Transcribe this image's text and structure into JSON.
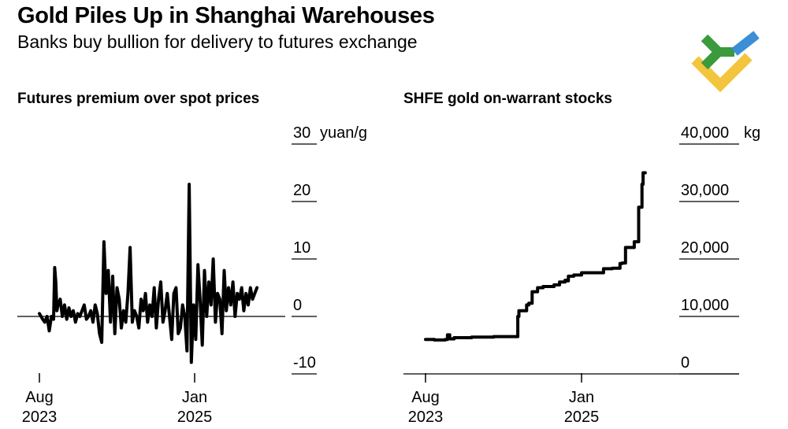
{
  "header": {
    "title": "Gold Piles Up in Shanghai Warehouses",
    "subtitle": "Banks buy bullion for delivery to futures exchange"
  },
  "colors": {
    "line": "#000000",
    "logo_green": "#3a9a3c",
    "logo_blue": "#3b8fd4",
    "logo_yellow": "#f2c53d"
  },
  "chart_data": [
    {
      "type": "line",
      "title": "Futures premium over spot prices",
      "unit": "yuan/g",
      "ylim": [
        -10,
        30
      ],
      "y_ticks": [
        {
          "value": 30,
          "label": "30"
        },
        {
          "value": 20,
          "label": "20"
        },
        {
          "value": 10,
          "label": "10"
        },
        {
          "value": 0,
          "label": "0"
        },
        {
          "value": -10,
          "label": "-10"
        }
      ],
      "x_ticks": [
        {
          "x": 2023.58,
          "label_top": "Aug",
          "label_bottom": "2023"
        },
        {
          "x": 2025.0,
          "label_top": "Jan",
          "label_bottom": "2025"
        }
      ],
      "xlim": [
        2023.0,
        2026.0
      ],
      "series": [
        {
          "name": "Premium",
          "x": [
            2023.58,
            2023.61,
            2023.63,
            2023.65,
            2023.67,
            2023.69,
            2023.71,
            2023.72,
            2023.73,
            2023.74,
            2023.75,
            2023.77,
            2023.79,
            2023.81,
            2023.83,
            2023.85,
            2023.87,
            2023.89,
            2023.91,
            2023.93,
            2023.95,
            2023.97,
            2023.99,
            2024.01,
            2024.03,
            2024.05,
            2024.07,
            2024.09,
            2024.11,
            2024.13,
            2024.15,
            2024.17,
            2024.19,
            2024.21,
            2024.23,
            2024.25,
            2024.27,
            2024.29,
            2024.31,
            2024.33,
            2024.35,
            2024.37,
            2024.39,
            2024.41,
            2024.43,
            2024.45,
            2024.47,
            2024.49,
            2024.51,
            2024.53,
            2024.55,
            2024.57,
            2024.59,
            2024.61,
            2024.63,
            2024.65,
            2024.67,
            2024.69,
            2024.71,
            2024.73,
            2024.75,
            2024.77,
            2024.79,
            2024.81,
            2024.83,
            2024.85,
            2024.87,
            2024.89,
            2024.91,
            2024.93,
            2024.95,
            2024.97,
            2024.99,
            2025.01,
            2025.03,
            2025.05,
            2025.07,
            2025.09,
            2025.11,
            2025.13,
            2025.15,
            2025.17,
            2025.19,
            2025.21,
            2025.23,
            2025.25,
            2025.27,
            2025.29,
            2025.31,
            2025.33,
            2025.35,
            2025.37,
            2025.39,
            2025.41,
            2025.43,
            2025.45,
            2025.47,
            2025.49,
            2025.51,
            2025.53,
            2025.55,
            2025.57
          ],
          "values": [
            0.5,
            -0.5,
            -1,
            0,
            -2.5,
            0,
            -0.5,
            8.5,
            6,
            1,
            2,
            3,
            0,
            2,
            -0.5,
            1.5,
            0,
            1,
            -1,
            0.5,
            0,
            1,
            2,
            -0.5,
            0,
            1,
            -1,
            2,
            0.5,
            -3,
            -4.5,
            13,
            4,
            8,
            -1,
            7,
            -3,
            5,
            3,
            -2,
            1,
            -1,
            4,
            12,
            -1,
            1,
            0,
            -2,
            3,
            1,
            4,
            -1,
            2,
            0,
            5,
            -2,
            3,
            6,
            -1,
            1,
            4,
            0,
            -4,
            4,
            5,
            -3,
            -2,
            2,
            0,
            -6,
            23,
            -8,
            2,
            -4,
            9,
            3,
            -5,
            8,
            0,
            6,
            2,
            10,
            -1,
            4,
            3,
            -3,
            8,
            1,
            5,
            2,
            6,
            0,
            4,
            3,
            5,
            1,
            4,
            2,
            5,
            3,
            4,
            5
          ]
        }
      ]
    },
    {
      "type": "line",
      "title": "SHFE gold on-warrant stocks",
      "unit": "kg",
      "ylim": [
        0,
        40000
      ],
      "y_ticks": [
        {
          "value": 40000,
          "label": "40,000"
        },
        {
          "value": 30000,
          "label": "30,000"
        },
        {
          "value": 20000,
          "label": "20,000"
        },
        {
          "value": 10000,
          "label": "10,000"
        },
        {
          "value": 0,
          "label": "0"
        }
      ],
      "x_ticks": [
        {
          "x": 2023.58,
          "label_top": "Aug",
          "label_bottom": "2023"
        },
        {
          "x": 2025.0,
          "label_top": "Jan",
          "label_bottom": "2025"
        }
      ],
      "xlim": [
        2023.0,
        2026.0
      ],
      "series": [
        {
          "name": "Stocks",
          "x": [
            2023.58,
            2023.66,
            2023.76,
            2023.78,
            2023.8,
            2023.82,
            2023.84,
            2023.9,
            2024.0,
            2024.2,
            2024.35,
            2024.4,
            2024.42,
            2024.43,
            2024.47,
            2024.5,
            2024.52,
            2024.55,
            2024.58,
            2024.6,
            2024.65,
            2024.75,
            2024.8,
            2024.85,
            2024.87,
            2024.88,
            2024.93,
            2025.0,
            2025.1,
            2025.2,
            2025.22,
            2025.28,
            2025.35,
            2025.37,
            2025.4,
            2025.45,
            2025.48,
            2025.5,
            2025.52,
            2025.55,
            2025.56,
            2025.58
          ],
          "values": [
            6000,
            5900,
            6000,
            6800,
            6100,
            6100,
            6300,
            6300,
            6400,
            6500,
            6500,
            6500,
            10000,
            11000,
            11000,
            12000,
            12300,
            14300,
            14300,
            15000,
            15200,
            15500,
            16000,
            16300,
            16200,
            17000,
            17200,
            17600,
            17600,
            18300,
            18300,
            18400,
            19200,
            19300,
            22000,
            22000,
            23000,
            23000,
            29000,
            33000,
            35000,
            35000
          ]
        }
      ]
    }
  ]
}
